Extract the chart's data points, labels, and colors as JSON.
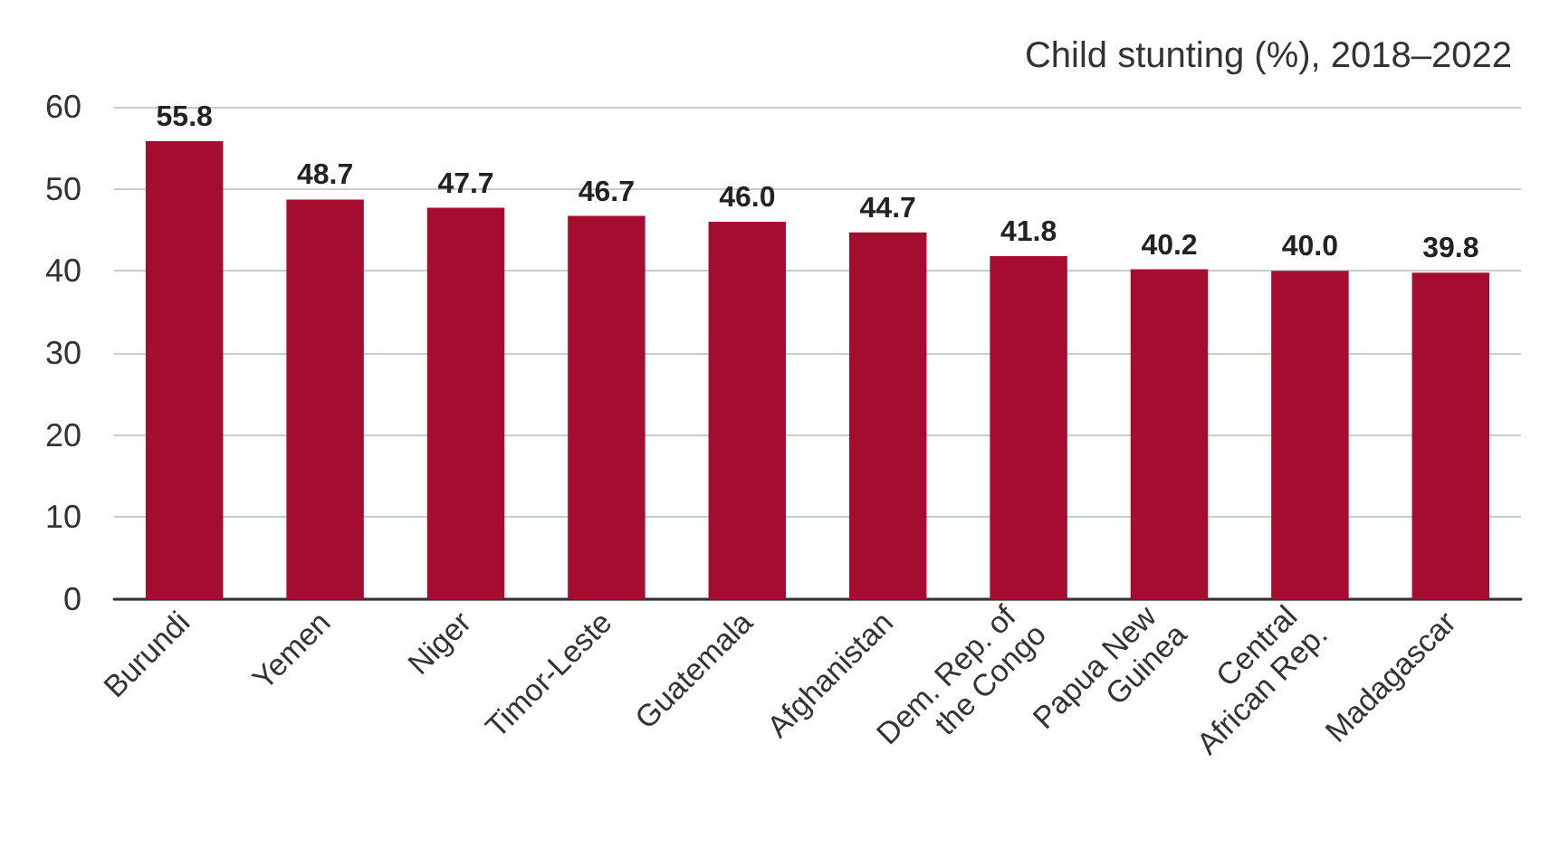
{
  "chart_data": {
    "type": "bar",
    "title": "Child stunting (%), 2018–2022",
    "categories": [
      "Burundi",
      "Yemen",
      "Niger",
      "Timor-Leste",
      "Guatemala",
      "Afghanistan",
      "Dem. Rep. of the Congo",
      "Papua New Guinea",
      "Central African Rep.",
      "Madagascar"
    ],
    "values": [
      55.8,
      48.7,
      47.7,
      46.7,
      46.0,
      44.7,
      41.8,
      40.2,
      40.0,
      39.8
    ],
    "value_labels": [
      "55.8",
      "48.7",
      "47.7",
      "46.7",
      "46.0",
      "44.7",
      "41.8",
      "40.2",
      "40.0",
      "39.8"
    ],
    "color": "#a50d30",
    "ylim": [
      0,
      60
    ],
    "yticks": [
      0,
      10,
      20,
      30,
      40,
      50,
      60
    ],
    "grid": "y"
  }
}
